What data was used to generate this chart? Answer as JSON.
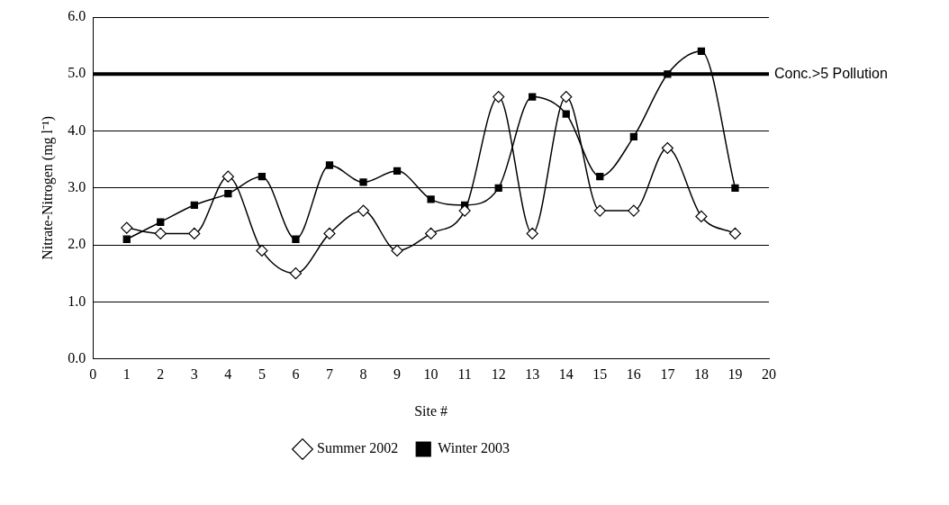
{
  "chart_data": {
    "type": "line",
    "xlabel": "Site #",
    "ylabel": "Nitrate-Nitrogen (mg l⁻¹)",
    "x": [
      1,
      2,
      3,
      4,
      5,
      6,
      7,
      8,
      9,
      10,
      11,
      12,
      13,
      14,
      15,
      16,
      17,
      18,
      19
    ],
    "series": [
      {
        "name": "Summer 2002",
        "color": "#000000",
        "marker": "diamond",
        "values": [
          2.3,
          2.2,
          2.2,
          3.2,
          1.9,
          1.5,
          2.2,
          2.6,
          1.9,
          2.2,
          2.6,
          4.6,
          2.2,
          4.6,
          2.6,
          2.6,
          3.7,
          2.5,
          2.2
        ]
      },
      {
        "name": "Winter 2003",
        "color": "#000000",
        "marker": "square",
        "values": [
          2.1,
          2.4,
          2.7,
          2.9,
          3.2,
          2.1,
          3.4,
          3.1,
          3.3,
          2.8,
          2.7,
          3.0,
          4.6,
          4.3,
          3.2,
          3.9,
          5.0,
          5.4,
          3.0
        ]
      }
    ],
    "xlim": [
      0,
      20
    ],
    "xticks": [
      0,
      1,
      2,
      3,
      4,
      5,
      6,
      7,
      8,
      9,
      10,
      11,
      12,
      13,
      14,
      15,
      16,
      17,
      18,
      19,
      20
    ],
    "ylim": [
      0,
      6
    ],
    "yticks": [
      {
        "value": 0,
        "label": "0.0"
      },
      {
        "value": 1,
        "label": "1.0"
      },
      {
        "value": 2,
        "label": "2.0"
      },
      {
        "value": 3,
        "label": "3.0"
      },
      {
        "value": 4,
        "label": "4.0"
      },
      {
        "value": 5,
        "label": "5.0"
      },
      {
        "value": 6,
        "label": "6.0"
      }
    ],
    "ref_lines": [
      {
        "axis": "y",
        "value": 5,
        "label": "Conc.>5 Pollution",
        "color": "#000000",
        "line_style": "solid"
      }
    ],
    "grid": "y",
    "legend": "bottom",
    "line_style": "solid"
  }
}
